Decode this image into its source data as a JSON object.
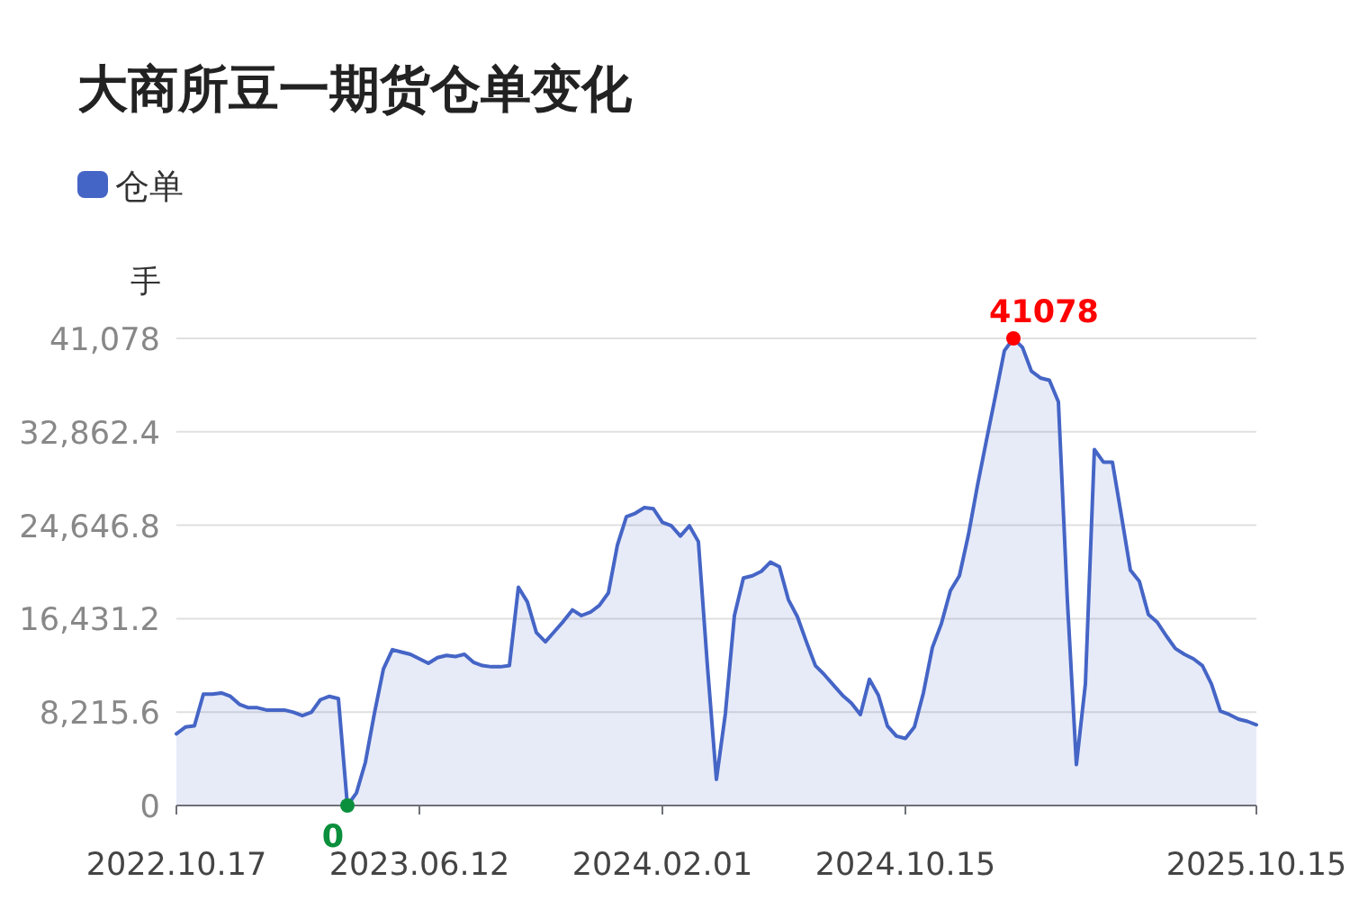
{
  "chart_data": {
    "type": "area",
    "title": "大商所豆一期货仓单变化",
    "ylabel": "手",
    "categories": [
      "2022.10.17",
      null,
      null,
      null,
      null,
      null,
      null,
      null,
      null,
      null,
      null,
      null,
      null,
      null,
      null,
      null,
      null,
      null,
      null,
      null,
      null,
      null,
      null,
      null,
      null,
      null,
      null,
      "2023.06.12",
      null,
      null,
      null,
      null,
      null,
      null,
      null,
      null,
      null,
      null,
      null,
      null,
      null,
      null,
      null,
      null,
      null,
      null,
      null,
      null,
      null,
      null,
      null,
      null,
      null,
      null,
      "2024.02.01",
      null,
      null,
      null,
      null,
      null,
      null,
      null,
      null,
      null,
      null,
      null,
      null,
      null,
      null,
      null,
      null,
      null,
      null,
      null,
      null,
      null,
      null,
      null,
      null,
      null,
      null,
      "2024.10.15",
      null,
      null,
      null,
      null,
      null,
      null,
      null,
      null,
      null,
      null,
      null,
      null,
      null,
      null,
      null,
      null,
      null,
      null,
      null,
      null,
      null,
      null,
      null,
      null,
      null,
      null,
      null,
      null,
      null,
      null,
      null,
      null,
      null,
      null,
      null,
      null,
      null,
      null,
      "2025.10.15"
    ],
    "series": [
      {
        "name": "仓单",
        "color": "#4565c6",
        "values": [
          6300,
          6900,
          7000,
          9800,
          9800,
          9900,
          9600,
          8900,
          8600,
          8600,
          8400,
          8400,
          8400,
          8200,
          7900,
          8200,
          9300,
          9600,
          9400,
          0,
          1100,
          3800,
          8100,
          12000,
          13700,
          13500,
          13300,
          12900,
          12500,
          13000,
          13200,
          13100,
          13300,
          12600,
          12300,
          12200,
          12200,
          12300,
          19200,
          17900,
          15200,
          14400,
          15300,
          16200,
          17200,
          16700,
          17000,
          17600,
          18700,
          22900,
          25400,
          25700,
          26200,
          26100,
          24900,
          24600,
          23700,
          24600,
          23200,
          12300,
          2300,
          8100,
          16700,
          20000,
          20200,
          20600,
          21400,
          21000,
          18100,
          16600,
          14400,
          12300,
          11500,
          10600,
          9700,
          9000,
          8000,
          11100,
          9700,
          7000,
          6100,
          5900,
          6900,
          9900,
          13900,
          16000,
          18900,
          20200,
          23800,
          28100,
          32100,
          36000,
          40000,
          41078,
          40300,
          38200,
          37600,
          37400,
          35500,
          18000,
          3600,
          10700,
          31300,
          30200,
          30200,
          25500,
          20700,
          19700,
          16800,
          16100,
          14900,
          13800,
          13300,
          12900,
          12300,
          10700,
          8300,
          8000,
          7600,
          7400,
          7100
        ],
        "value_labels": [
          null,
          null,
          null,
          null,
          null,
          null,
          null,
          null,
          null,
          null,
          null,
          null,
          null,
          null,
          null,
          null,
          null,
          null,
          null,
          "0",
          null,
          null,
          null,
          null,
          null,
          null,
          null,
          null,
          null,
          null,
          null,
          null,
          null,
          null,
          null,
          null,
          null,
          null,
          null,
          null,
          null,
          null,
          null,
          null,
          null,
          null,
          null,
          null,
          null,
          null,
          null,
          null,
          null,
          null,
          null,
          null,
          null,
          null,
          null,
          null,
          null,
          null,
          null,
          null,
          null,
          null,
          null,
          null,
          null,
          null,
          null,
          null,
          null,
          null,
          null,
          null,
          null,
          null,
          null,
          null,
          null,
          null,
          null,
          null,
          null,
          null,
          null,
          null,
          null,
          null,
          null,
          null,
          null,
          "41078",
          null,
          null,
          null,
          null,
          null,
          null,
          null,
          null,
          null,
          null,
          null,
          null,
          null,
          null,
          null,
          null,
          null,
          null,
          null,
          null,
          null,
          null,
          null,
          null,
          null,
          null,
          null
        ]
      }
    ],
    "ylim": [
      0,
      41078
    ],
    "yticks": [
      0,
      {
        "value": 8215.6,
        "label": "8,215.6"
      },
      {
        "value": 16431.2,
        "label": "16,431.2"
      },
      {
        "value": 24646.8,
        "label": "24,646.8"
      },
      {
        "value": 32862.4,
        "label": "32,862.4"
      },
      {
        "value": 41078,
        "label": "41,078"
      }
    ],
    "grid": "y",
    "legend": "top left"
  }
}
